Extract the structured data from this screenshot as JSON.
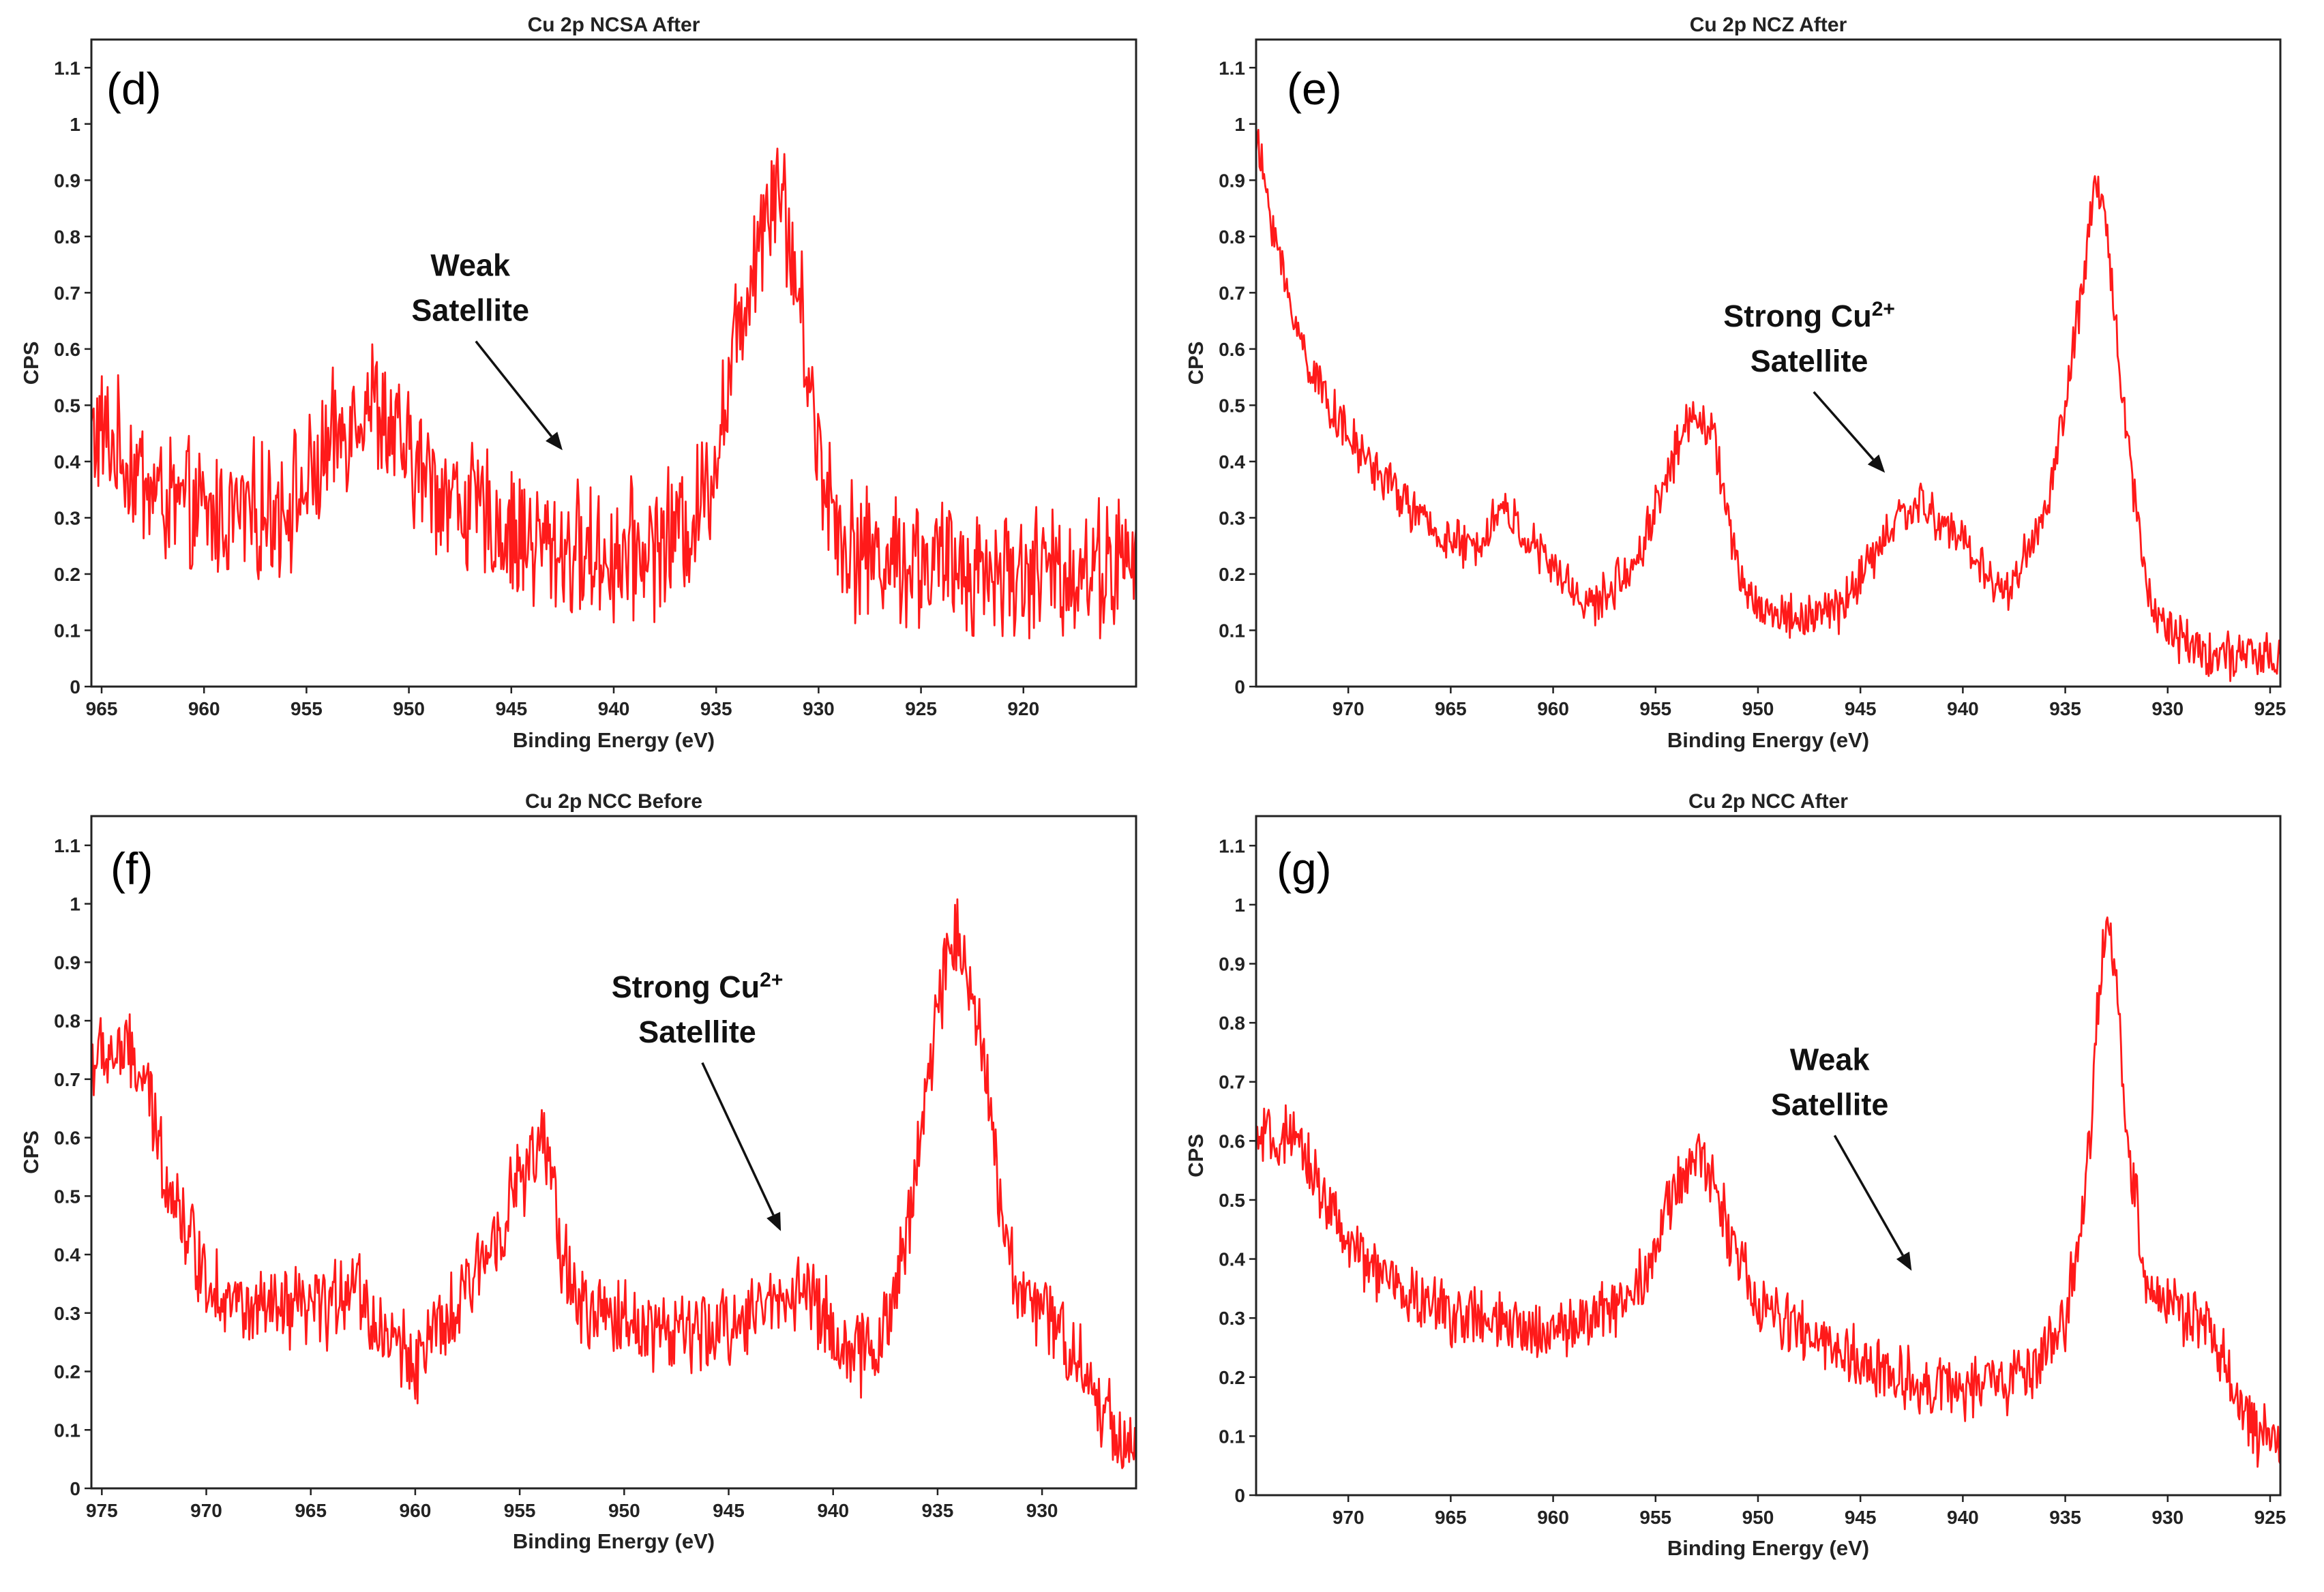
{
  "colors": {
    "series": "#ff1a1a",
    "axis": "#222222",
    "background": "#ffffff"
  },
  "chart_data": [
    {
      "id": "d",
      "type": "line",
      "title": "Cu 2p NCSA After",
      "panel_label": "(d)",
      "xlabel": "Binding Energy (eV)",
      "ylabel": "CPS",
      "xlim": [
        965.5,
        914.5
      ],
      "ylim": [
        0,
        1.15
      ],
      "xticks": [
        965,
        960,
        955,
        950,
        945,
        940,
        935,
        930,
        925,
        920
      ],
      "yticks": [
        0,
        0.1,
        0.2,
        0.3,
        0.4,
        0.5,
        0.6,
        0.7,
        0.8,
        0.9,
        1,
        1.1
      ],
      "annotation": {
        "lines": [
          "Weak",
          "Satellite"
        ],
        "target": [
          942.5,
          0.42
        ],
        "text_at": [
          947,
          0.73
        ]
      },
      "series": [
        {
          "name": "Cu 2p",
          "x": [
            965,
            962,
            960,
            957,
            955,
            953,
            952,
            950,
            948,
            945,
            942,
            940,
            938,
            936,
            935,
            934,
            933,
            932,
            931,
            930,
            929,
            928,
            925,
            922,
            920,
            917,
            915
          ],
          "values": [
            0.45,
            0.33,
            0.3,
            0.31,
            0.35,
            0.47,
            0.52,
            0.4,
            0.34,
            0.27,
            0.24,
            0.23,
            0.25,
            0.3,
            0.42,
            0.62,
            0.8,
            0.92,
            0.7,
            0.42,
            0.28,
            0.24,
            0.22,
            0.21,
            0.2,
            0.21,
            0.22
          ],
          "noise": 0.1
        }
      ]
    },
    {
      "id": "e",
      "type": "line",
      "title": "Cu 2p NCZ After",
      "panel_label": "(e)",
      "xlabel": "Binding Energy (eV)",
      "ylabel": "CPS",
      "xlim": [
        974.5,
        924.5
      ],
      "ylim": [
        0,
        1.15
      ],
      "xticks": [
        970,
        965,
        960,
        955,
        950,
        945,
        940,
        935,
        930,
        925
      ],
      "yticks": [
        0,
        0.1,
        0.2,
        0.3,
        0.4,
        0.5,
        0.6,
        0.7,
        0.8,
        0.9,
        1,
        1.1
      ],
      "annotation": {
        "lines": [
          "Strong Cu2+",
          "Satellite"
        ],
        "target": [
          943.8,
          0.38
        ],
        "text_at": [
          947.5,
          0.64
        ]
      },
      "series": [
        {
          "name": "Cu 2p",
          "x": [
            974.5,
            973,
            972,
            970,
            968,
            966,
            964,
            962.5,
            961,
            959,
            958,
            956,
            954,
            953,
            952,
            951,
            950,
            948,
            946,
            944,
            943,
            942,
            940,
            938,
            936,
            935,
            934,
            933.5,
            933,
            932,
            931,
            930,
            928,
            926,
            924.5
          ],
          "values": [
            0.97,
            0.7,
            0.58,
            0.44,
            0.36,
            0.28,
            0.24,
            0.32,
            0.25,
            0.17,
            0.14,
            0.22,
            0.42,
            0.5,
            0.42,
            0.2,
            0.14,
            0.12,
            0.14,
            0.25,
            0.31,
            0.32,
            0.26,
            0.16,
            0.3,
            0.5,
            0.75,
            0.9,
            0.82,
            0.45,
            0.17,
            0.1,
            0.06,
            0.05,
            0.05
          ],
          "noise": 0.035
        }
      ]
    },
    {
      "id": "f",
      "type": "line",
      "title": "Cu 2p NCC Before",
      "panel_label": "(f)",
      "xlabel": "Binding Energy (eV)",
      "ylabel": "CPS",
      "xlim": [
        975.5,
        925.5
      ],
      "ylim": [
        0,
        1.15
      ],
      "xticks": [
        975,
        970,
        965,
        960,
        955,
        950,
        945,
        940,
        935,
        930
      ],
      "yticks": [
        0,
        0.1,
        0.2,
        0.3,
        0.4,
        0.5,
        0.6,
        0.7,
        0.8,
        0.9,
        1,
        1.1
      ],
      "annotation": {
        "lines": [
          "Strong Cu2+",
          "Satellite"
        ],
        "target": [
          942.5,
          0.44
        ],
        "text_at": [
          946.5,
          0.84
        ]
      },
      "series": [
        {
          "name": "Cu 2p",
          "x": [
            975.5,
            974,
            973,
            972,
            971,
            970,
            968,
            966,
            964,
            963,
            962,
            960,
            958,
            956,
            955,
            954,
            953.5,
            953,
            952,
            950,
            948,
            946,
            944,
            942,
            941,
            940,
            939,
            938,
            937,
            936,
            935,
            934.5,
            934,
            933,
            932,
            931,
            930,
            929,
            928,
            927,
            926,
            925.5
          ],
          "values": [
            0.73,
            0.75,
            0.7,
            0.55,
            0.45,
            0.36,
            0.3,
            0.3,
            0.31,
            0.37,
            0.28,
            0.22,
            0.3,
            0.45,
            0.53,
            0.58,
            0.55,
            0.4,
            0.3,
            0.29,
            0.27,
            0.26,
            0.3,
            0.34,
            0.33,
            0.27,
            0.22,
            0.24,
            0.33,
            0.55,
            0.82,
            0.93,
            0.95,
            0.8,
            0.48,
            0.33,
            0.3,
            0.27,
            0.2,
            0.13,
            0.08,
            0.06
          ],
          "noise": 0.06
        }
      ]
    },
    {
      "id": "g",
      "type": "line",
      "title": "Cu 2p NCC After",
      "panel_label": "(g)",
      "xlabel": "Binding Energy (eV)",
      "ylabel": "CPS",
      "xlim": [
        974.5,
        924.5
      ],
      "ylim": [
        0,
        1.15
      ],
      "xticks": [
        970,
        965,
        960,
        955,
        950,
        945,
        940,
        935,
        930,
        925
      ],
      "yticks": [
        0,
        0.1,
        0.2,
        0.3,
        0.4,
        0.5,
        0.6,
        0.7,
        0.8,
        0.9,
        1,
        1.1
      ],
      "annotation": {
        "lines": [
          "Weak",
          "Satellite"
        ],
        "target": [
          942.5,
          0.38
        ],
        "text_at": [
          946.5,
          0.72
        ]
      },
      "series": [
        {
          "name": "Cu 2p",
          "x": [
            974.5,
            973,
            972,
            970,
            968,
            966,
            964,
            962,
            960,
            958,
            956,
            955,
            954,
            953,
            952,
            951,
            950,
            948,
            946,
            944,
            942,
            940,
            938,
            936,
            935,
            934,
            933.5,
            933,
            932.5,
            932,
            931,
            930,
            929,
            928,
            927,
            926,
            924.5
          ],
          "values": [
            0.6,
            0.6,
            0.57,
            0.42,
            0.36,
            0.32,
            0.3,
            0.28,
            0.28,
            0.3,
            0.35,
            0.42,
            0.52,
            0.58,
            0.52,
            0.4,
            0.32,
            0.28,
            0.24,
            0.21,
            0.19,
            0.18,
            0.19,
            0.23,
            0.3,
            0.5,
            0.78,
            0.97,
            0.88,
            0.62,
            0.35,
            0.33,
            0.3,
            0.28,
            0.2,
            0.11,
            0.09
          ],
          "noise": 0.045
        }
      ]
    }
  ]
}
